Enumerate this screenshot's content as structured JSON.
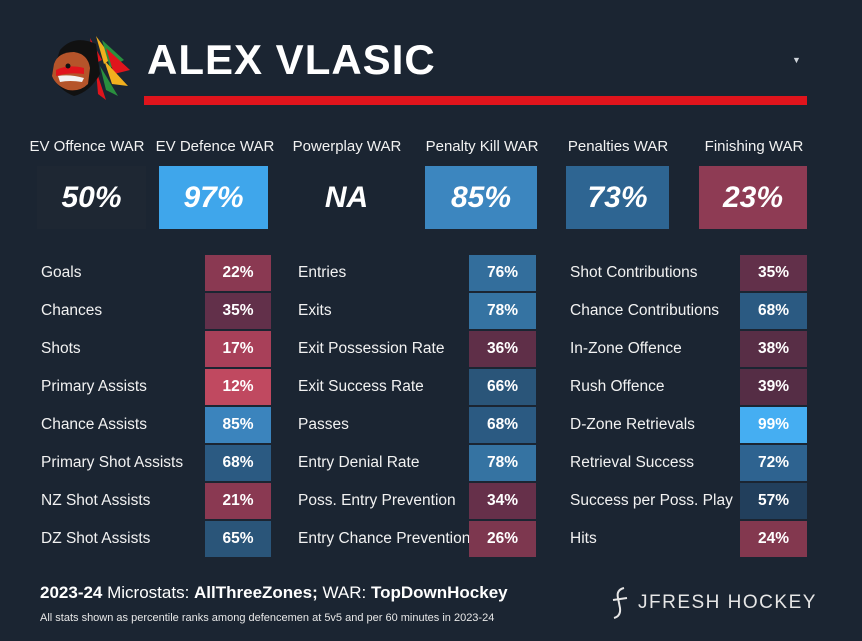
{
  "player": {
    "name": "ALEX VLASIC"
  },
  "war": [
    {
      "label": "EV Offence WAR",
      "value": "50%",
      "color": "#1e2733"
    },
    {
      "label": "EV Defence WAR",
      "value": "97%",
      "color": "#3fa6eb"
    },
    {
      "label": "Powerplay WAR",
      "value": "NA",
      "color": "#1b2532"
    },
    {
      "label": "Penalty Kill WAR",
      "value": "85%",
      "color": "#3c86bf"
    },
    {
      "label": "Penalties WAR",
      "value": "73%",
      "color": "#2e6592"
    },
    {
      "label": "Finishing WAR",
      "value": "23%",
      "color": "#8e3b54"
    }
  ],
  "stats": {
    "col1": [
      {
        "label": "Goals",
        "value": "22%",
        "color": "#8a3952"
      },
      {
        "label": "Chances",
        "value": "35%",
        "color": "#62304a"
      },
      {
        "label": "Shots",
        "value": "17%",
        "color": "#a84059"
      },
      {
        "label": "Primary Assists",
        "value": "12%",
        "color": "#c04960"
      },
      {
        "label": "Chance Assists",
        "value": "85%",
        "color": "#3b84bd"
      },
      {
        "label": "Primary Shot Assists",
        "value": "68%",
        "color": "#2b5a82"
      },
      {
        "label": "NZ Shot Assists",
        "value": "21%",
        "color": "#8a3952"
      },
      {
        "label": "DZ Shot Assists",
        "value": "65%",
        "color": "#2a5579"
      }
    ],
    "col2": [
      {
        "label": "Entries",
        "value": "76%",
        "color": "#336e9c"
      },
      {
        "label": "Exits",
        "value": "78%",
        "color": "#3573a2"
      },
      {
        "label": "Exit Possession Rate",
        "value": "36%",
        "color": "#5f2f48"
      },
      {
        "label": "Exit Success Rate",
        "value": "66%",
        "color": "#2a5579"
      },
      {
        "label": "Passes",
        "value": "68%",
        "color": "#2b5a82"
      },
      {
        "label": "Entry Denial Rate",
        "value": "78%",
        "color": "#3573a2"
      },
      {
        "label": "Poss. Entry Prevention",
        "value": "34%",
        "color": "#66304a"
      },
      {
        "label": "Entry Chance Prevention",
        "value": "26%",
        "color": "#7d374f"
      }
    ],
    "col3": [
      {
        "label": "Shot Contributions",
        "value": "35%",
        "color": "#62304a"
      },
      {
        "label": "Chance Contributions",
        "value": "68%",
        "color": "#2b5a82"
      },
      {
        "label": "In-Zone Offence",
        "value": "38%",
        "color": "#582e46"
      },
      {
        "label": "Rush Offence",
        "value": "39%",
        "color": "#552d45"
      },
      {
        "label": "D-Zone Retrievals",
        "value": "99%",
        "color": "#45aef2"
      },
      {
        "label": "Retrieval Success",
        "value": "72%",
        "color": "#2e6390"
      },
      {
        "label": "Success per Poss. Play",
        "value": "57%",
        "color": "#223f5c"
      },
      {
        "label": "Hits",
        "value": "24%",
        "color": "#83384f"
      }
    ]
  },
  "footer": {
    "season": "2023-24",
    "micro_label": " Microstats: ",
    "micro_source": "AllThreeZones;",
    "war_label": " WAR: ",
    "war_source": "TopDownHockey",
    "note": "All stats shown as percentile ranks among defencemen at 5v5 and per 60 minutes in 2023-24",
    "brand": "JFRESH HOCKEY"
  },
  "icons": {
    "team_logo": "blackhawks-logo-icon",
    "dropdown": "caret-down-icon",
    "brand_logo": "jfresh-logo-icon"
  }
}
